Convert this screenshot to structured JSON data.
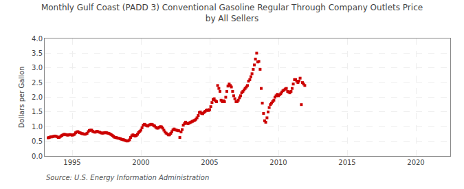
{
  "chart_data": {
    "type": "scatter",
    "title": "Monthly Gulf Coast (PADD 3) Conventional Gasoline Regular Through Company Outlets Price\nby All Sellers",
    "y_label": "Dollars per Gallon",
    "annotations": [
      "Source: U.S. Energy Information Administration"
    ],
    "color": "#cc0000",
    "marker": "square",
    "grid": true,
    "xlim": [
      1993.0,
      2022.5
    ],
    "ylim": [
      0.0,
      4.0
    ],
    "xticks": [
      1995,
      2000,
      2005,
      2010,
      2015,
      2020
    ],
    "yticks": [
      {
        "value": 0.0,
        "label": "0.0"
      },
      0.5,
      {
        "value": 1.0,
        "label": "1.0"
      },
      1.5,
      {
        "value": 2.0,
        "label": "2.0"
      },
      2.5,
      {
        "value": 3.0,
        "label": "3.0"
      },
      3.5,
      {
        "value": 4.0,
        "label": "4.0"
      }
    ],
    "x": [
      1993.25,
      1993.33,
      1993.42,
      1993.5,
      1993.58,
      1993.67,
      1993.75,
      1993.83,
      1993.92,
      1994.0,
      1994.08,
      1994.17,
      1994.25,
      1994.33,
      1994.42,
      1994.5,
      1994.58,
      1994.67,
      1994.75,
      1994.83,
      1994.92,
      1995.0,
      1995.08,
      1995.17,
      1995.25,
      1995.33,
      1995.42,
      1995.5,
      1995.58,
      1995.67,
      1995.75,
      1995.83,
      1995.92,
      1996.0,
      1996.08,
      1996.17,
      1996.25,
      1996.33,
      1996.42,
      1996.5,
      1996.58,
      1996.67,
      1996.75,
      1996.83,
      1996.92,
      1997.0,
      1997.08,
      1997.17,
      1997.25,
      1997.33,
      1997.42,
      1997.5,
      1997.58,
      1997.67,
      1997.75,
      1997.83,
      1997.92,
      1998.0,
      1998.08,
      1998.17,
      1998.25,
      1998.33,
      1998.42,
      1998.5,
      1998.58,
      1998.67,
      1998.75,
      1998.83,
      1998.92,
      1999.0,
      1999.08,
      1999.17,
      1999.25,
      1999.33,
      1999.42,
      1999.5,
      1999.58,
      1999.67,
      1999.75,
      1999.83,
      1999.92,
      2000.0,
      2000.08,
      2000.17,
      2000.25,
      2000.33,
      2000.42,
      2000.5,
      2000.58,
      2000.67,
      2000.75,
      2000.83,
      2000.92,
      2001.0,
      2001.08,
      2001.17,
      2001.25,
      2001.33,
      2001.42,
      2001.5,
      2001.58,
      2001.67,
      2001.75,
      2001.83,
      2001.92,
      2002.0,
      2002.08,
      2002.17,
      2002.25,
      2002.33,
      2002.42,
      2002.5,
      2002.58,
      2002.67,
      2002.75,
      2002.83,
      2002.92,
      2003.0,
      2003.08,
      2003.17,
      2003.25,
      2003.33,
      2003.42,
      2003.5,
      2003.58,
      2003.67,
      2003.75,
      2003.83,
      2003.92,
      2004.0,
      2004.08,
      2004.17,
      2004.25,
      2004.33,
      2004.42,
      2004.5,
      2004.58,
      2004.67,
      2004.75,
      2004.83,
      2004.92,
      2005.0,
      2005.08,
      2005.17,
      2005.25,
      2005.33,
      2005.42,
      2005.5,
      2005.58,
      2005.67,
      2005.75,
      2005.83,
      2005.92,
      2006.0,
      2006.08,
      2006.17,
      2006.25,
      2006.33,
      2006.42,
      2006.5,
      2006.58,
      2006.67,
      2006.75,
      2006.83,
      2006.92,
      2007.0,
      2007.08,
      2007.17,
      2007.25,
      2007.33,
      2007.42,
      2007.5,
      2007.58,
      2007.67,
      2007.75,
      2007.83,
      2007.92,
      2008.0,
      2008.08,
      2008.17,
      2008.25,
      2008.33,
      2008.42,
      2008.5,
      2008.58,
      2008.67,
      2008.75,
      2008.83,
      2008.92,
      2009.0,
      2009.08,
      2009.17,
      2009.25,
      2009.33,
      2009.42,
      2009.5,
      2009.58,
      2009.67,
      2009.75,
      2009.83,
      2009.92,
      2010.0,
      2010.08,
      2010.17,
      2010.25,
      2010.33,
      2010.42,
      2010.5,
      2010.58,
      2010.67,
      2010.75,
      2010.83,
      2010.92,
      2011.0,
      2011.08,
      2011.17,
      2011.25,
      2011.33,
      2011.42,
      2011.5,
      2011.58,
      2011.67,
      2011.75,
      2011.83,
      2011.92
    ],
    "values": [
      0.62,
      0.63,
      0.65,
      0.65,
      0.66,
      0.67,
      0.68,
      0.67,
      0.65,
      0.63,
      0.64,
      0.67,
      0.7,
      0.72,
      0.74,
      0.73,
      0.72,
      0.71,
      0.72,
      0.73,
      0.72,
      0.71,
      0.72,
      0.74,
      0.79,
      0.82,
      0.83,
      0.8,
      0.79,
      0.77,
      0.76,
      0.75,
      0.74,
      0.75,
      0.77,
      0.83,
      0.87,
      0.88,
      0.88,
      0.84,
      0.82,
      0.81,
      0.83,
      0.84,
      0.82,
      0.81,
      0.79,
      0.78,
      0.78,
      0.79,
      0.8,
      0.79,
      0.78,
      0.77,
      0.75,
      0.73,
      0.7,
      0.67,
      0.64,
      0.63,
      0.62,
      0.61,
      0.6,
      0.59,
      0.57,
      0.56,
      0.55,
      0.54,
      0.52,
      0.51,
      0.52,
      0.55,
      0.63,
      0.69,
      0.72,
      0.7,
      0.68,
      0.7,
      0.74,
      0.8,
      0.84,
      0.88,
      0.96,
      1.05,
      1.08,
      1.06,
      1.03,
      1.02,
      1.05,
      1.07,
      1.08,
      1.07,
      1.04,
      1.02,
      0.98,
      0.95,
      0.95,
      0.98,
      1.0,
      0.99,
      0.95,
      0.88,
      0.82,
      0.78,
      0.75,
      0.72,
      0.72,
      0.77,
      0.83,
      0.89,
      0.92,
      0.89,
      0.88,
      0.87,
      0.86,
      0.63,
      0.82,
      0.9,
      1.05,
      1.1,
      1.15,
      1.12,
      1.1,
      1.12,
      1.14,
      1.16,
      1.18,
      1.2,
      1.22,
      1.25,
      1.3,
      1.38,
      1.48,
      1.5,
      1.45,
      1.44,
      1.48,
      1.52,
      1.55,
      1.57,
      1.55,
      1.58,
      1.68,
      1.82,
      1.92,
      1.95,
      1.88,
      1.85,
      2.4,
      2.3,
      2.2,
      1.9,
      1.85,
      1.88,
      1.85,
      2.0,
      2.2,
      2.38,
      2.45,
      2.4,
      2.35,
      2.2,
      2.05,
      1.95,
      1.85,
      1.85,
      1.9,
      1.98,
      2.05,
      2.15,
      2.2,
      2.25,
      2.3,
      2.35,
      2.4,
      2.55,
      2.6,
      2.7,
      2.8,
      2.95,
      3.1,
      3.3,
      3.5,
      3.2,
      3.22,
      2.95,
      2.3,
      1.8,
      1.45,
      1.2,
      1.15,
      1.3,
      1.5,
      1.65,
      1.75,
      1.8,
      1.85,
      1.9,
      2.0,
      2.05,
      2.1,
      2.05,
      2.08,
      2.12,
      2.18,
      2.22,
      2.25,
      2.28,
      2.3,
      2.2,
      2.18,
      2.15,
      2.2,
      2.3,
      2.45,
      2.6,
      2.6,
      2.55,
      2.5,
      2.55,
      2.65,
      1.75,
      2.5,
      2.45,
      2.4
    ]
  }
}
